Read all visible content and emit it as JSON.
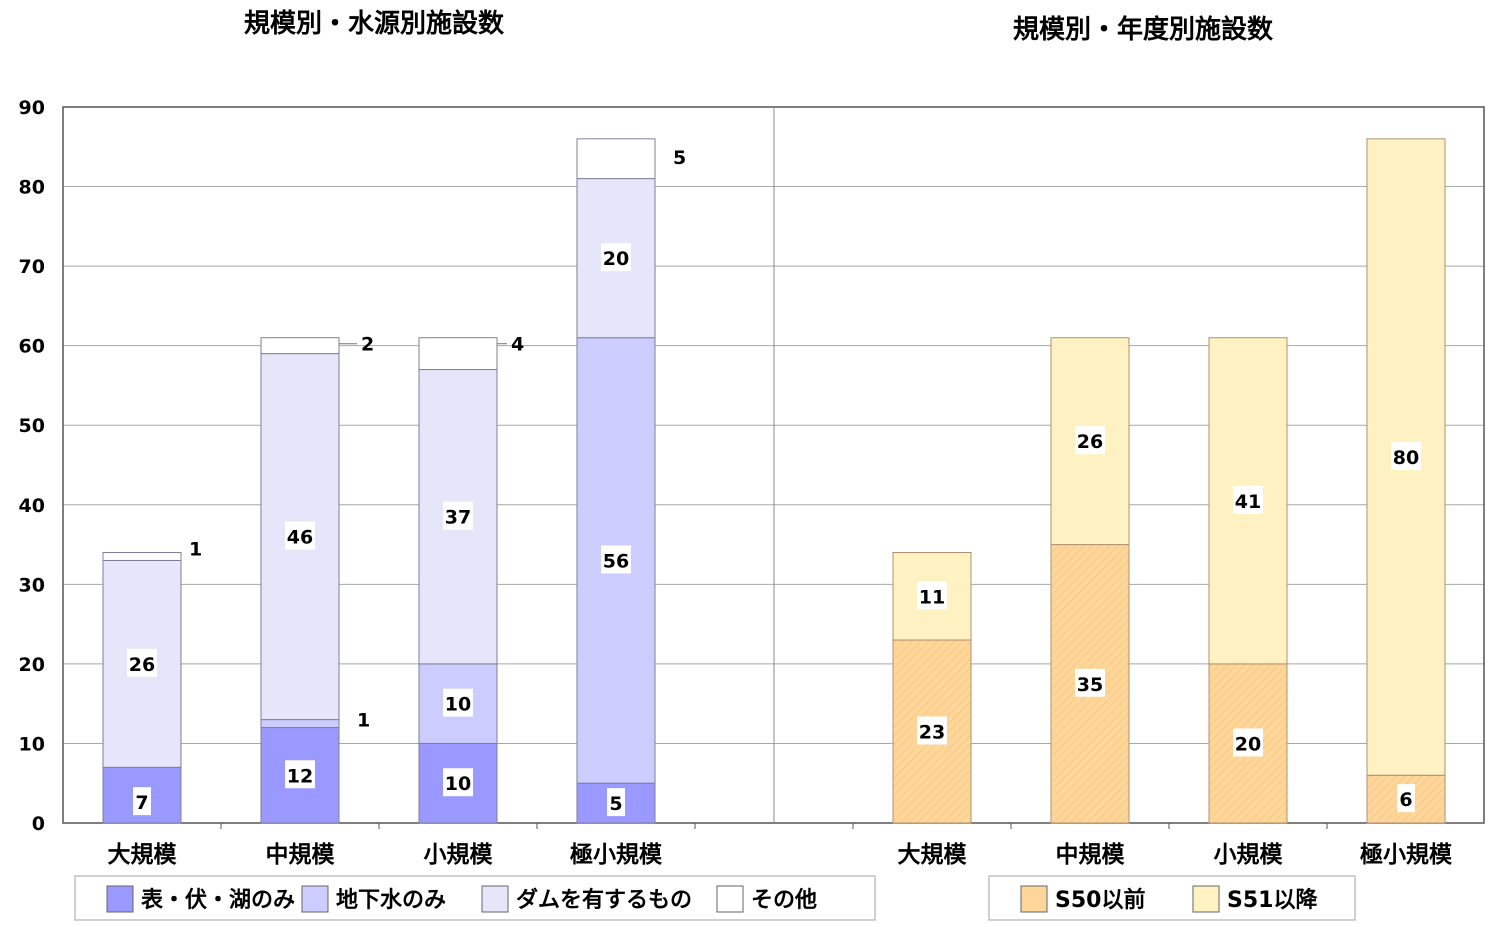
{
  "chart_data": [
    {
      "type": "bar",
      "stacked": true,
      "title": "規模別・水源別施設数",
      "categories": [
        "大規模",
        "中規模",
        "小規模",
        "極小規模"
      ],
      "ylim": [
        0,
        90
      ],
      "yticks": [
        0,
        10,
        20,
        30,
        40,
        50,
        60,
        70,
        80,
        90
      ],
      "grid": true,
      "legend_position": "bottom",
      "series": [
        {
          "name": "表・伏・湖のみ",
          "color": "#9999ff",
          "values": [
            7,
            12,
            10,
            5
          ]
        },
        {
          "name": "地下水のみ",
          "color": "#ccccff",
          "values": [
            0,
            1,
            10,
            56
          ]
        },
        {
          "name": "ダムを有するもの",
          "color": "#e6e6fa",
          "values": [
            26,
            46,
            37,
            20
          ]
        },
        {
          "name": "その他",
          "color": "#ffffff",
          "values": [
            1,
            2,
            4,
            5
          ]
        }
      ],
      "labels": [
        [
          "7",
          "",
          "26",
          "1"
        ],
        [
          "12",
          "1",
          "46",
          "2"
        ],
        [
          "10",
          "10",
          "37",
          "4"
        ],
        [
          "5",
          "56",
          "20",
          "5"
        ]
      ]
    },
    {
      "type": "bar",
      "stacked": true,
      "title": "規模別・年度別施設数",
      "categories": [
        "大規模",
        "中規模",
        "小規模",
        "極小規模"
      ],
      "ylim": [
        0,
        90
      ],
      "grid": true,
      "legend_position": "bottom",
      "series": [
        {
          "name": "S50以前",
          "color": "#ffd699",
          "values": [
            23,
            35,
            20,
            6
          ]
        },
        {
          "name": "S51以降",
          "color": "#fff2c2",
          "values": [
            11,
            26,
            41,
            80
          ]
        }
      ],
      "labels": [
        [
          "23",
          "11"
        ],
        [
          "35",
          "26"
        ],
        [
          "20",
          "41"
        ],
        [
          "6",
          "80"
        ]
      ]
    }
  ]
}
